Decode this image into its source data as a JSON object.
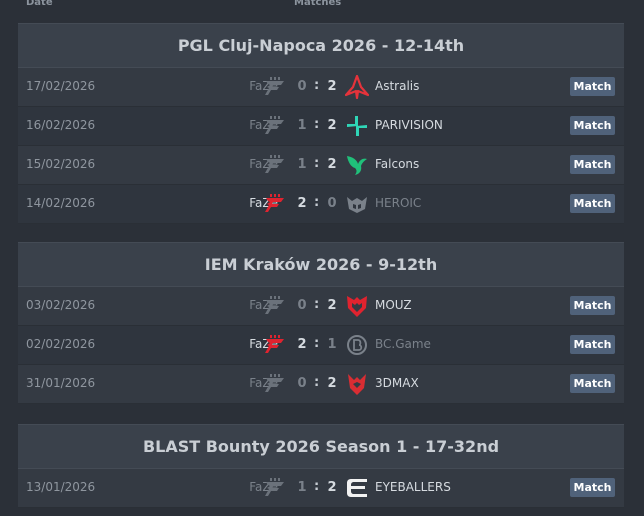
{
  "columns": {
    "date": "Date",
    "matches": "Matches"
  },
  "colors": {
    "faze_red": "#e0232f",
    "faze_gray": "#6b727b",
    "astralis": "#e5333b",
    "parivision": "#2fd6b7",
    "falcons": "#20c07a",
    "mouz": "#e0232f",
    "3dmax": "#d92d33",
    "eyeballers": "#f2f2f2",
    "button": "#50627a"
  },
  "events": [
    {
      "title": "PGL Cluj-Napoca 2026 - 12-14th",
      "matches": [
        {
          "date": "17/02/2026",
          "team1": "FaZe",
          "team1_icon": "faze-logo",
          "score1": "0",
          "score2": "2",
          "team2": "Astralis",
          "team2_icon": "astralis-logo",
          "winner": 2,
          "button": "Match"
        },
        {
          "date": "16/02/2026",
          "team1": "FaZe",
          "team1_icon": "faze-logo",
          "score1": "1",
          "score2": "2",
          "team2": "PARIVISION",
          "team2_icon": "parivision-logo",
          "winner": 2,
          "button": "Match"
        },
        {
          "date": "15/02/2026",
          "team1": "FaZe",
          "team1_icon": "faze-logo",
          "score1": "1",
          "score2": "2",
          "team2": "Falcons",
          "team2_icon": "falcons-logo",
          "winner": 2,
          "button": "Match"
        },
        {
          "date": "14/02/2026",
          "team1": "FaZe",
          "team1_icon": "faze-logo",
          "score1": "2",
          "score2": "0",
          "team2": "HEROIC",
          "team2_icon": "heroic-logo",
          "winner": 1,
          "button": "Match"
        }
      ]
    },
    {
      "title": "IEM Kraków 2026 - 9-12th",
      "matches": [
        {
          "date": "03/02/2026",
          "team1": "FaZe",
          "team1_icon": "faze-logo",
          "score1": "0",
          "score2": "2",
          "team2": "MOUZ",
          "team2_icon": "mouz-logo",
          "winner": 2,
          "button": "Match"
        },
        {
          "date": "02/02/2026",
          "team1": "FaZe",
          "team1_icon": "faze-logo",
          "score1": "2",
          "score2": "1",
          "team2": "BC.Game",
          "team2_icon": "bcgame-logo",
          "winner": 1,
          "button": "Match"
        },
        {
          "date": "31/01/2026",
          "team1": "FaZe",
          "team1_icon": "faze-logo",
          "score1": "0",
          "score2": "2",
          "team2": "3DMAX",
          "team2_icon": "3dmax-logo",
          "winner": 2,
          "button": "Match"
        }
      ]
    },
    {
      "title": "BLAST Bounty 2026 Season 1 - 17-32nd",
      "matches": [
        {
          "date": "13/01/2026",
          "team1": "FaZe",
          "team1_icon": "faze-logo",
          "score1": "1",
          "score2": "2",
          "team2": "EYEBALLERS",
          "team2_icon": "eyeballers-logo",
          "winner": 2,
          "button": "Match"
        }
      ]
    }
  ]
}
